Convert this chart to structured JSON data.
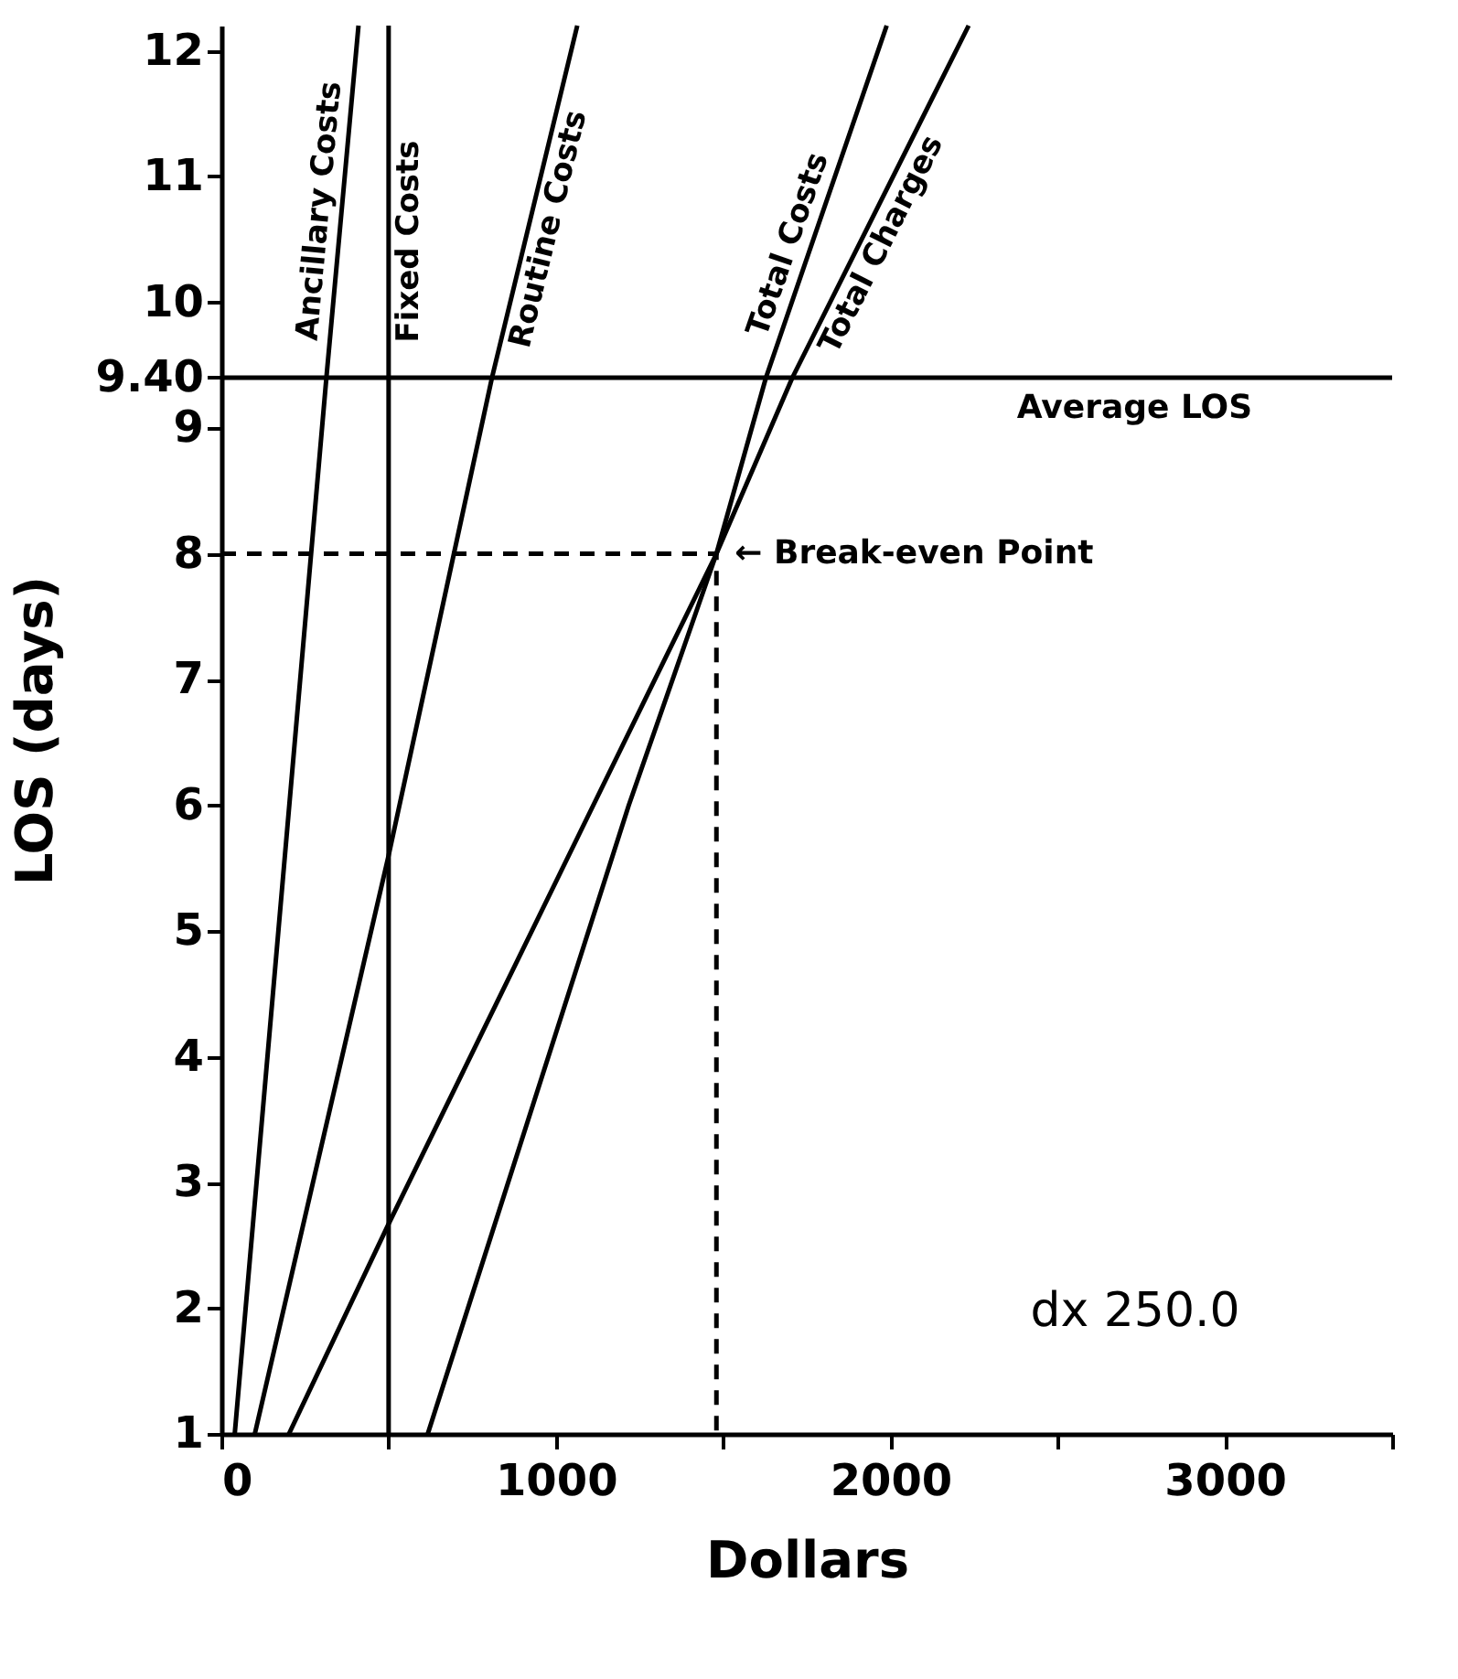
{
  "chart_data": {
    "type": "line",
    "xlabel": "Dollars",
    "ylabel": "LOS (days)",
    "xlim": [
      0,
      3500
    ],
    "ylim": [
      1,
      12.2
    ],
    "xticks": [
      0,
      {
        "value": 500,
        "label": null
      },
      1000,
      {
        "value": 1500,
        "label": null
      },
      2000,
      {
        "value": 2500,
        "label": null
      },
      3000,
      {
        "value": 3500,
        "label": null
      }
    ],
    "yticks": [
      1,
      2,
      3,
      4,
      5,
      6,
      7,
      8,
      9,
      {
        "value": 9.4,
        "label": "9.40"
      },
      10,
      11,
      12
    ],
    "grid": false,
    "marker": "none",
    "series": [
      {
        "name": "Ancillary Costs",
        "color": "#000000",
        "x": [
          40,
          314,
          410
        ],
        "values": [
          1,
          9.4,
          12.2
        ]
      },
      {
        "name": "Routine Costs",
        "color": "#000000",
        "x": [
          100,
          500,
          809,
          1064
        ],
        "values": [
          1,
          5.6,
          9.4,
          12.2
        ]
      },
      {
        "name": "Total Costs",
        "color": "#000000",
        "x": [
          202,
          500,
          1112,
          1480,
          1628,
          1989
        ],
        "values": [
          1,
          2.67,
          6,
          8.0,
          9.4,
          12.2
        ]
      },
      {
        "name": "Total Charges",
        "color": "#000000",
        "x": [
          617,
          1218,
          1480,
          1707,
          2234
        ],
        "values": [
          1,
          6,
          8.0,
          9.4,
          12.2
        ]
      },
      {
        "type": "line",
        "line_style": "dashed",
        "color": "#000000",
        "x": [
          0,
          1480,
          1480
        ],
        "values": [
          8.0,
          8.0,
          1
        ]
      }
    ],
    "ref_lines": [
      {
        "axis": "y",
        "value": 9.4,
        "label": "Average LOS",
        "color": "#000000"
      },
      {
        "axis": "x",
        "value": 500,
        "label": "Fixed Costs",
        "color": "#000000"
      }
    ],
    "annotations": [
      {
        "text": "← Break-even Point",
        "x": 1480,
        "y": 8.0
      },
      "dx 250.0"
    ]
  }
}
